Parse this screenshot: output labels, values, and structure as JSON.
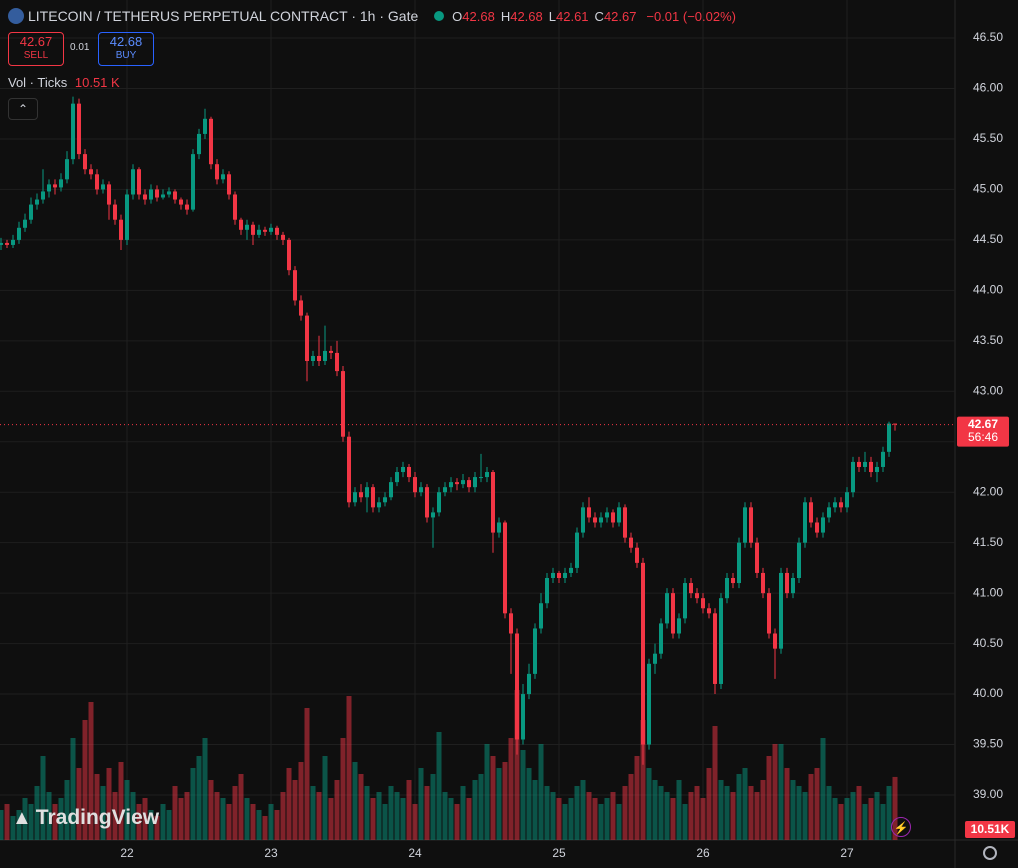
{
  "chart_data": {
    "type": "candlestick",
    "title": "LITECOIN / TETHERUS PERPETUAL CONTRACT · 1h · Gate",
    "legend": [
      {
        "label": "O",
        "value": 42.68
      },
      {
        "label": "H",
        "value": 42.68
      },
      {
        "label": "L",
        "value": 42.61
      },
      {
        "label": "C",
        "value": 42.67
      }
    ],
    "change_text": "−0.01 (−0.02%)",
    "sell": {
      "price": 42.67,
      "label": "SELL"
    },
    "spread": 0.01,
    "buy": {
      "price": 42.68,
      "label": "BUY"
    },
    "volume_title": "Vol · Ticks",
    "volume_label": "10.51 K",
    "volume_axis_label": "10.51K",
    "last_price": 42.67,
    "countdown": "56:46",
    "brand": "TradingView",
    "up_color": "#089981",
    "down_color": "#f23645",
    "grid": true,
    "ylim": [
      38.554,
      46.877
    ],
    "yticks": [
      {
        "value": 39,
        "label": "39.00"
      },
      {
        "value": 39.5,
        "label": "39.50"
      },
      {
        "value": 40,
        "label": "40.00"
      },
      {
        "value": 40.5,
        "label": "40.50"
      },
      {
        "value": 41,
        "label": "41.00"
      },
      {
        "value": 41.5,
        "label": "41.50"
      },
      {
        "value": 42,
        "label": "42.00"
      },
      {
        "value": 42.5,
        "label": "42.50"
      },
      {
        "value": 43,
        "label": "43.00"
      },
      {
        "value": 43.5,
        "label": "43.50"
      },
      {
        "value": 44,
        "label": "44.00"
      },
      {
        "value": 44.5,
        "label": "44.50"
      },
      {
        "value": 45,
        "label": "45.00"
      },
      {
        "value": 45.5,
        "label": "45.50"
      },
      {
        "value": 46,
        "label": "46.00"
      },
      {
        "value": 46.5,
        "label": "46.50"
      }
    ],
    "vlim": [
      0,
      30
    ],
    "categories": [
      null,
      null,
      null,
      null,
      null,
      null,
      null,
      null,
      null,
      null,
      null,
      null,
      null,
      null,
      null,
      null,
      null,
      null,
      null,
      null,
      null,
      "22",
      null,
      null,
      null,
      null,
      null,
      null,
      null,
      null,
      null,
      null,
      null,
      null,
      null,
      null,
      null,
      null,
      null,
      null,
      null,
      null,
      null,
      null,
      null,
      "23",
      null,
      null,
      null,
      null,
      null,
      null,
      null,
      null,
      null,
      null,
      null,
      null,
      null,
      null,
      null,
      null,
      null,
      null,
      null,
      null,
      null,
      null,
      null,
      "24",
      null,
      null,
      null,
      null,
      null,
      null,
      null,
      null,
      null,
      null,
      null,
      null,
      null,
      null,
      null,
      null,
      null,
      null,
      null,
      null,
      null,
      null,
      null,
      "25",
      null,
      null,
      null,
      null,
      null,
      null,
      null,
      null,
      null,
      null,
      null,
      null,
      null,
      null,
      null,
      null,
      null,
      null,
      null,
      null,
      null,
      null,
      null,
      "26",
      null,
      null,
      null,
      null,
      null,
      null,
      null,
      null,
      null,
      null,
      null,
      null,
      null,
      null,
      null,
      null,
      null,
      null,
      null,
      null,
      null,
      null,
      null,
      "27",
      null,
      null,
      null,
      null,
      null,
      null,
      null,
      null
    ],
    "candles": [
      [
        44.45,
        44.52,
        44.4,
        44.47
      ],
      [
        44.47,
        44.5,
        44.42,
        44.45
      ],
      [
        44.45,
        44.55,
        44.42,
        44.5
      ],
      [
        44.5,
        44.68,
        44.46,
        44.62
      ],
      [
        44.62,
        44.76,
        44.58,
        44.7
      ],
      [
        44.7,
        44.92,
        44.66,
        44.85
      ],
      [
        44.85,
        44.96,
        44.8,
        44.9
      ],
      [
        44.9,
        45.2,
        44.86,
        44.98
      ],
      [
        44.98,
        45.1,
        44.92,
        45.05
      ],
      [
        45.05,
        45.1,
        44.95,
        45.02
      ],
      [
        45.02,
        45.16,
        44.98,
        45.1
      ],
      [
        45.1,
        45.38,
        45.06,
        45.3
      ],
      [
        45.3,
        45.92,
        45.25,
        45.85
      ],
      [
        45.85,
        45.9,
        45.3,
        45.35
      ],
      [
        45.35,
        45.4,
        45.15,
        45.2
      ],
      [
        45.2,
        45.25,
        45.1,
        45.15
      ],
      [
        45.15,
        45.2,
        44.95,
        45.0
      ],
      [
        45.0,
        45.1,
        44.96,
        45.05
      ],
      [
        45.05,
        45.08,
        44.7,
        44.85
      ],
      [
        44.85,
        44.9,
        44.65,
        44.7
      ],
      [
        44.7,
        44.75,
        44.4,
        44.5
      ],
      [
        44.5,
        45.0,
        44.45,
        44.95
      ],
      [
        44.95,
        45.25,
        44.9,
        45.2
      ],
      [
        45.2,
        45.22,
        44.9,
        44.95
      ],
      [
        44.95,
        45.0,
        44.85,
        44.9
      ],
      [
        44.9,
        45.05,
        44.86,
        45.0
      ],
      [
        45.0,
        45.04,
        44.88,
        44.92
      ],
      [
        44.92,
        45.0,
        44.9,
        44.95
      ],
      [
        44.95,
        45.02,
        44.92,
        44.98
      ],
      [
        44.98,
        45.0,
        44.86,
        44.9
      ],
      [
        44.9,
        44.92,
        44.8,
        44.85
      ],
      [
        44.85,
        44.9,
        44.75,
        44.8
      ],
      [
        44.8,
        45.4,
        44.78,
        45.35
      ],
      [
        45.35,
        45.6,
        45.3,
        45.55
      ],
      [
        45.55,
        45.8,
        45.5,
        45.7
      ],
      [
        45.7,
        45.72,
        45.2,
        45.25
      ],
      [
        45.25,
        45.3,
        45.05,
        45.1
      ],
      [
        45.1,
        45.2,
        45.06,
        45.15
      ],
      [
        45.15,
        45.18,
        44.9,
        44.95
      ],
      [
        44.95,
        44.98,
        44.65,
        44.7
      ],
      [
        44.7,
        44.72,
        44.55,
        44.6
      ],
      [
        44.6,
        44.7,
        44.5,
        44.65
      ],
      [
        44.65,
        44.68,
        44.45,
        44.55
      ],
      [
        44.55,
        44.65,
        44.52,
        44.6
      ],
      [
        44.6,
        44.63,
        44.54,
        44.58
      ],
      [
        44.58,
        44.66,
        44.55,
        44.62
      ],
      [
        44.62,
        44.64,
        44.5,
        44.55
      ],
      [
        44.55,
        44.58,
        44.45,
        44.5
      ],
      [
        44.5,
        44.52,
        44.15,
        44.2
      ],
      [
        44.2,
        44.24,
        43.85,
        43.9
      ],
      [
        43.9,
        43.95,
        43.7,
        43.75
      ],
      [
        43.75,
        43.78,
        43.1,
        43.3
      ],
      [
        43.3,
        43.4,
        43.25,
        43.35
      ],
      [
        43.35,
        43.55,
        43.25,
        43.3
      ],
      [
        43.3,
        43.65,
        43.26,
        43.4
      ],
      [
        43.4,
        43.45,
        43.32,
        43.38
      ],
      [
        43.38,
        43.5,
        43.15,
        43.2
      ],
      [
        43.2,
        43.25,
        42.5,
        42.55
      ],
      [
        42.55,
        42.6,
        41.85,
        41.9
      ],
      [
        41.9,
        42.05,
        41.86,
        42.0
      ],
      [
        42.0,
        42.08,
        41.9,
        41.95
      ],
      [
        41.95,
        42.1,
        41.8,
        42.05
      ],
      [
        42.05,
        42.08,
        41.8,
        41.85
      ],
      [
        41.85,
        41.95,
        41.8,
        41.9
      ],
      [
        41.9,
        42.0,
        41.86,
        41.95
      ],
      [
        41.95,
        42.15,
        41.92,
        42.1
      ],
      [
        42.1,
        42.25,
        42.06,
        42.2
      ],
      [
        42.2,
        42.3,
        42.15,
        42.25
      ],
      [
        42.25,
        42.28,
        42.1,
        42.15
      ],
      [
        42.15,
        42.2,
        41.95,
        42.0
      ],
      [
        42.0,
        42.1,
        41.96,
        42.05
      ],
      [
        42.05,
        42.08,
        41.7,
        41.75
      ],
      [
        41.75,
        41.85,
        41.45,
        41.8
      ],
      [
        41.8,
        42.05,
        41.76,
        42.0
      ],
      [
        42.0,
        42.1,
        41.96,
        42.05
      ],
      [
        42.05,
        42.15,
        42.0,
        42.1
      ],
      [
        42.1,
        42.14,
        42.02,
        42.08
      ],
      [
        42.08,
        42.18,
        42.04,
        42.12
      ],
      [
        42.12,
        42.15,
        42.0,
        42.05
      ],
      [
        42.05,
        42.2,
        42.0,
        42.15
      ],
      [
        42.15,
        42.38,
        42.1,
        42.15
      ],
      [
        42.15,
        42.25,
        42.1,
        42.2
      ],
      [
        42.2,
        42.22,
        41.4,
        41.6
      ],
      [
        41.6,
        41.75,
        41.55,
        41.7
      ],
      [
        41.7,
        41.72,
        40.75,
        40.8
      ],
      [
        40.8,
        40.85,
        40.2,
        40.6
      ],
      [
        40.6,
        40.65,
        39.4,
        39.55
      ],
      [
        39.55,
        40.1,
        39.5,
        40.0
      ],
      [
        40.0,
        40.3,
        39.95,
        40.2
      ],
      [
        40.2,
        40.7,
        40.15,
        40.65
      ],
      [
        40.65,
        41.0,
        40.6,
        40.9
      ],
      [
        40.9,
        41.2,
        40.85,
        41.15
      ],
      [
        41.15,
        41.25,
        41.1,
        41.2
      ],
      [
        41.2,
        41.22,
        41.1,
        41.15
      ],
      [
        41.15,
        41.25,
        41.1,
        41.2
      ],
      [
        41.2,
        41.3,
        41.16,
        41.25
      ],
      [
        41.25,
        41.65,
        41.2,
        41.6
      ],
      [
        41.6,
        41.9,
        41.55,
        41.85
      ],
      [
        41.85,
        41.95,
        41.7,
        41.75
      ],
      [
        41.75,
        41.8,
        41.65,
        41.7
      ],
      [
        41.7,
        41.8,
        41.65,
        41.75
      ],
      [
        41.75,
        41.85,
        41.7,
        41.8
      ],
      [
        41.8,
        41.83,
        41.65,
        41.7
      ],
      [
        41.7,
        41.9,
        41.66,
        41.85
      ],
      [
        41.85,
        41.88,
        41.5,
        41.55
      ],
      [
        41.55,
        41.6,
        41.4,
        41.45
      ],
      [
        41.45,
        41.5,
        41.25,
        41.3
      ],
      [
        41.3,
        41.35,
        39.3,
        39.5
      ],
      [
        39.5,
        40.35,
        39.45,
        40.3
      ],
      [
        40.3,
        40.5,
        40.2,
        40.4
      ],
      [
        40.4,
        40.75,
        40.35,
        40.7
      ],
      [
        40.7,
        41.05,
        40.65,
        41.0
      ],
      [
        41.0,
        41.05,
        40.55,
        40.6
      ],
      [
        40.6,
        40.8,
        40.55,
        40.75
      ],
      [
        40.75,
        41.15,
        40.7,
        41.1
      ],
      [
        41.1,
        41.15,
        40.95,
        41.0
      ],
      [
        41.0,
        41.05,
        40.9,
        40.95
      ],
      [
        40.95,
        41.0,
        40.8,
        40.85
      ],
      [
        40.85,
        40.9,
        40.75,
        40.8
      ],
      [
        40.8,
        40.85,
        40.0,
        40.1
      ],
      [
        40.1,
        41.0,
        40.05,
        40.95
      ],
      [
        40.95,
        41.2,
        40.9,
        41.15
      ],
      [
        41.15,
        41.2,
        41.05,
        41.1
      ],
      [
        41.1,
        41.55,
        41.05,
        41.5
      ],
      [
        41.5,
        41.9,
        41.45,
        41.85
      ],
      [
        41.85,
        41.9,
        41.45,
        41.5
      ],
      [
        41.5,
        41.55,
        41.15,
        41.2
      ],
      [
        41.2,
        41.25,
        40.95,
        41.0
      ],
      [
        41.0,
        41.05,
        40.55,
        40.6
      ],
      [
        40.6,
        40.65,
        40.15,
        40.45
      ],
      [
        40.45,
        41.25,
        40.4,
        41.2
      ],
      [
        41.2,
        41.25,
        40.95,
        41.0
      ],
      [
        41.0,
        41.2,
        40.95,
        41.15
      ],
      [
        41.15,
        41.55,
        41.1,
        41.5
      ],
      [
        41.5,
        41.95,
        41.45,
        41.9
      ],
      [
        41.9,
        41.95,
        41.65,
        41.7
      ],
      [
        41.7,
        41.75,
        41.55,
        41.6
      ],
      [
        41.6,
        41.8,
        41.55,
        41.75
      ],
      [
        41.75,
        41.9,
        41.7,
        41.85
      ],
      [
        41.85,
        41.95,
        41.8,
        41.9
      ],
      [
        41.9,
        41.95,
        41.8,
        41.85
      ],
      [
        41.85,
        42.05,
        41.8,
        42.0
      ],
      [
        42.0,
        42.35,
        41.95,
        42.3
      ],
      [
        42.3,
        42.35,
        42.2,
        42.25
      ],
      [
        42.25,
        42.4,
        42.2,
        42.3
      ],
      [
        42.3,
        42.35,
        42.15,
        42.2
      ],
      [
        42.2,
        42.3,
        42.1,
        42.25
      ],
      [
        42.25,
        42.45,
        42.2,
        42.4
      ],
      [
        42.4,
        42.7,
        42.35,
        42.68
      ],
      [
        42.68,
        42.68,
        42.61,
        42.67
      ]
    ],
    "volumes": [
      5,
      6,
      4,
      5,
      7,
      6,
      9,
      14,
      8,
      6,
      7,
      10,
      17,
      12,
      20,
      23,
      11,
      9,
      12,
      8,
      13,
      10,
      8,
      6,
      7,
      5,
      4,
      6,
      5,
      9,
      7,
      8,
      12,
      14,
      17,
      10,
      8,
      7,
      6,
      9,
      11,
      7,
      6,
      5,
      4,
      6,
      5,
      8,
      12,
      10,
      13,
      22,
      9,
      8,
      14,
      7,
      10,
      17,
      24,
      13,
      11,
      9,
      7,
      8,
      6,
      9,
      8,
      7,
      10,
      6,
      12,
      9,
      11,
      18,
      8,
      7,
      6,
      9,
      7,
      10,
      11,
      16,
      14,
      12,
      13,
      17,
      25,
      15,
      12,
      10,
      16,
      9,
      8,
      7,
      6,
      7,
      9,
      10,
      8,
      7,
      6,
      7,
      8,
      6,
      9,
      11,
      14,
      20,
      12,
      10,
      9,
      8,
      7,
      10,
      6,
      8,
      9,
      7,
      12,
      19,
      10,
      9,
      8,
      11,
      12,
      9,
      8,
      10,
      14,
      16,
      16,
      12,
      10,
      9,
      8,
      11,
      12,
      17,
      9,
      7,
      6,
      7,
      8,
      9,
      6,
      7,
      8,
      6,
      9,
      10.51
    ]
  }
}
